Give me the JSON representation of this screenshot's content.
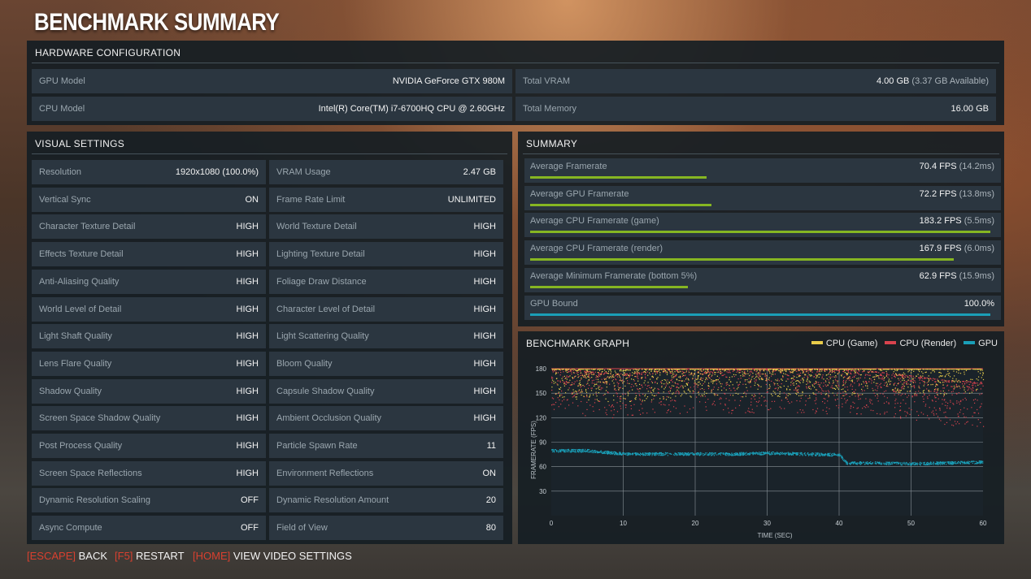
{
  "title": "BENCHMARK SUMMARY",
  "hardware": {
    "heading": "HARDWARE CONFIGURATION",
    "rows": [
      {
        "label": "GPU Model",
        "value": "NVIDIA GeForce GTX 980M"
      },
      {
        "label": "CPU Model",
        "value": "Intel(R) Core(TM) i7-6700HQ CPU @ 2.60GHz"
      },
      {
        "label": "Total VRAM",
        "value": "4.00 GB",
        "sub": "(3.37 GB Available)"
      },
      {
        "label": "Total Memory",
        "value": "16.00 GB"
      }
    ]
  },
  "visual": {
    "heading": "VISUAL SETTINGS",
    "left": [
      {
        "label": "Resolution",
        "value": "1920x1080 (100.0%)"
      },
      {
        "label": "Vertical Sync",
        "value": "ON"
      },
      {
        "label": "Character Texture Detail",
        "value": "HIGH"
      },
      {
        "label": "Effects Texture Detail",
        "value": "HIGH"
      },
      {
        "label": "Anti-Aliasing Quality",
        "value": "HIGH"
      },
      {
        "label": "World Level of Detail",
        "value": "HIGH"
      },
      {
        "label": "Light Shaft Quality",
        "value": "HIGH"
      },
      {
        "label": "Lens Flare Quality",
        "value": "HIGH"
      },
      {
        "label": "Shadow Quality",
        "value": "HIGH"
      },
      {
        "label": "Screen Space Shadow Quality",
        "value": "HIGH"
      },
      {
        "label": "Post Process Quality",
        "value": "HIGH"
      },
      {
        "label": "Screen Space Reflections",
        "value": "HIGH"
      },
      {
        "label": "Dynamic Resolution Scaling",
        "value": "OFF"
      },
      {
        "label": "Async Compute",
        "value": "OFF"
      }
    ],
    "right": [
      {
        "label": "VRAM Usage",
        "value": "2.47 GB"
      },
      {
        "label": "Frame Rate Limit",
        "value": "UNLIMITED"
      },
      {
        "label": "World Texture Detail",
        "value": "HIGH"
      },
      {
        "label": "Lighting Texture Detail",
        "value": "HIGH"
      },
      {
        "label": "Foliage Draw Distance",
        "value": "HIGH"
      },
      {
        "label": "Character Level of Detail",
        "value": "HIGH"
      },
      {
        "label": "Light Scattering Quality",
        "value": "HIGH"
      },
      {
        "label": "Bloom Quality",
        "value": "HIGH"
      },
      {
        "label": "Capsule Shadow Quality",
        "value": "HIGH"
      },
      {
        "label": "Ambient Occlusion Quality",
        "value": "HIGH"
      },
      {
        "label": "Particle Spawn Rate",
        "value": "11"
      },
      {
        "label": "Environment Reflections",
        "value": "ON"
      },
      {
        "label": "Dynamic Resolution Amount",
        "value": "20"
      },
      {
        "label": "Field of View",
        "value": "80"
      }
    ]
  },
  "summary": {
    "heading": "SUMMARY",
    "rows": [
      {
        "label": "Average Framerate",
        "value": "70.4 FPS",
        "sub": "(14.2ms)",
        "fill": 0.38,
        "color": "#86b622"
      },
      {
        "label": "Average GPU Framerate",
        "value": "72.2 FPS",
        "sub": "(13.8ms)",
        "fill": 0.39,
        "color": "#86b622"
      },
      {
        "label": "Average CPU Framerate (game)",
        "value": "183.2 FPS",
        "sub": "(5.5ms)",
        "fill": 0.99,
        "color": "#86b622"
      },
      {
        "label": "Average CPU Framerate (render)",
        "value": "167.9 FPS",
        "sub": "(6.0ms)",
        "fill": 0.91,
        "color": "#86b622"
      },
      {
        "label": "Average Minimum Framerate (bottom 5%)",
        "value": "62.9 FPS",
        "sub": "(15.9ms)",
        "fill": 0.34,
        "color": "#86b622"
      },
      {
        "label": "GPU Bound",
        "value": "100.0%",
        "sub": "",
        "fill": 0.99,
        "color": "#1a9fb8"
      }
    ]
  },
  "graph": {
    "heading": "BENCHMARK GRAPH",
    "legend": [
      {
        "name": "CPU (Game)",
        "color": "#e8cc4a"
      },
      {
        "name": "CPU (Render)",
        "color": "#d9434e"
      },
      {
        "name": "GPU",
        "color": "#1a9fb8"
      }
    ]
  },
  "chart_data": {
    "type": "scatter",
    "xlabel": "TIME (SEC)",
    "ylabel": "FRAMERATE (FPS)",
    "xlim": [
      0,
      60
    ],
    "ylim": [
      0,
      180
    ],
    "xticks": [
      0,
      10,
      20,
      30,
      40,
      50,
      60
    ],
    "yticks": [
      30,
      60,
      90,
      120,
      150,
      180
    ],
    "grid": true,
    "series": [
      {
        "name": "CPU (Game)",
        "color": "#e8cc4a",
        "x": [
          0,
          5,
          10,
          15,
          20,
          25,
          30,
          35,
          40,
          45,
          50,
          55,
          60
        ],
        "y": [
          172,
          168,
          165,
          168,
          172,
          171,
          172,
          170,
          172,
          175,
          176,
          174,
          176
        ]
      },
      {
        "name": "CPU (Render)",
        "color": "#d9434e",
        "x": [
          0,
          5,
          10,
          15,
          20,
          25,
          30,
          35,
          40,
          45,
          50,
          55,
          60
        ],
        "y": [
          168,
          163,
          160,
          164,
          168,
          166,
          167,
          165,
          165,
          163,
          158,
          152,
          150
        ]
      },
      {
        "name": "GPU",
        "color": "#1a9fb8",
        "x": [
          0,
          5,
          10,
          15,
          20,
          25,
          30,
          35,
          40,
          41,
          45,
          50,
          55,
          60
        ],
        "y": [
          80,
          80,
          76,
          76,
          76,
          76,
          77,
          76,
          75,
          65,
          65,
          64,
          65,
          66
        ]
      }
    ]
  },
  "footer": {
    "items": [
      {
        "key": "ESCAPE",
        "label": "BACK"
      },
      {
        "key": "F5",
        "label": "RESTART"
      },
      {
        "key": "HOME",
        "label": "VIEW VIDEO SETTINGS"
      }
    ]
  }
}
